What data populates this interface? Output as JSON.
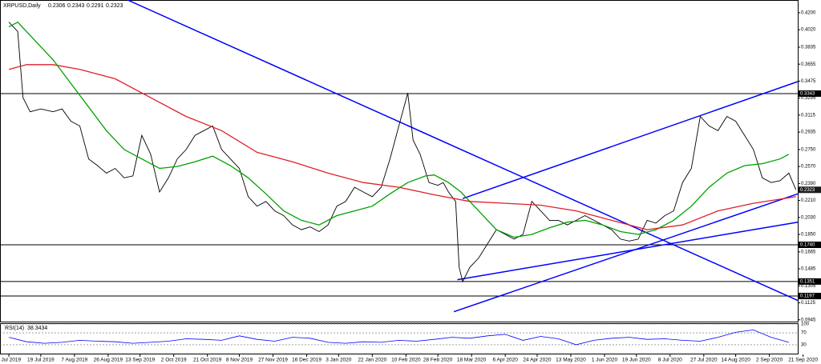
{
  "chart_data": [
    {
      "type": "line",
      "title": "XRPUSD,Daily",
      "ohlc": [
        0.2306,
        0.2343,
        0.2291,
        0.2323
      ],
      "xlim": [
        -5,
        445
      ],
      "ylim": [
        0.0926,
        0.4335
      ],
      "xticks": [
        {
          "value": 0,
          "label": "1 Jul 2019"
        },
        {
          "value": 18,
          "label": "19 Jul 2019"
        },
        {
          "value": 37,
          "label": "7 Aug 2019"
        },
        {
          "value": 56,
          "label": "26 Aug 2019"
        },
        {
          "value": 74,
          "label": "13 Sep 2019"
        },
        {
          "value": 93,
          "label": "2 Oct 2019"
        },
        {
          "value": 112,
          "label": "21 Oct 2019"
        },
        {
          "value": 130,
          "label": "8 Nov 2019"
        },
        {
          "value": 149,
          "label": "27 Nov 2019"
        },
        {
          "value": 168,
          "label": "16 Dec 2019"
        },
        {
          "value": 186,
          "label": "3 Jan 2020"
        },
        {
          "value": 205,
          "label": "22 Jan 2020"
        },
        {
          "value": 224,
          "label": "10 Feb 2020"
        },
        {
          "value": 242,
          "label": "28 Feb 2020"
        },
        {
          "value": 261,
          "label": "18 Mar 2020"
        },
        {
          "value": 280,
          "label": "6 Apr 2020"
        },
        {
          "value": 298,
          "label": "24 Apr 2020"
        },
        {
          "value": 317,
          "label": "13 May 2020"
        },
        {
          "value": 336,
          "label": "1 Jun 2020"
        },
        {
          "value": 354,
          "label": "19 Jun 2020"
        },
        {
          "value": 373,
          "label": "8 Jul 2020"
        },
        {
          "value": 392,
          "label": "27 Jul 2020"
        },
        {
          "value": 410,
          "label": "14 Aug 2020"
        },
        {
          "value": 429,
          "label": "2 Sep 2020"
        },
        {
          "value": 448,
          "label": "21 Sep 2020"
        }
      ],
      "yticks": [
        {
          "value": 0.42,
          "label": "0.4200"
        },
        {
          "value": 0.402,
          "label": "0.4020"
        },
        {
          "value": 0.3835,
          "label": "0.3835"
        },
        {
          "value": 0.3655,
          "label": "0.3655"
        },
        {
          "value": 0.3475,
          "label": "0.3475"
        },
        {
          "value": 0.3295,
          "label": "0.3295"
        },
        {
          "value": 0.3115,
          "label": "0.3115"
        },
        {
          "value": 0.2935,
          "label": "0.2935"
        },
        {
          "value": 0.275,
          "label": "0.2750"
        },
        {
          "value": 0.257,
          "label": "0.2570"
        },
        {
          "value": 0.239,
          "label": "0.2390"
        },
        {
          "value": 0.221,
          "label": "0.2210"
        },
        {
          "value": 0.203,
          "label": "0.2030"
        },
        {
          "value": 0.185,
          "label": "0.1850"
        },
        {
          "value": 0.1665,
          "label": "0.1665"
        },
        {
          "value": 0.1485,
          "label": "0.1485"
        },
        {
          "value": 0.1305,
          "label": "0.1305"
        },
        {
          "value": 0.1125,
          "label": "0.1125"
        },
        {
          "value": 0.0945,
          "label": "0.0945"
        }
      ],
      "levels": [
        {
          "value": 0.3343,
          "label": "0.3343"
        },
        {
          "value": 0.174,
          "label": "0.1740"
        },
        {
          "value": 0.1351,
          "label": "0.1351"
        },
        {
          "value": 0.1197,
          "label": "0.1197"
        }
      ],
      "series": [
        {
          "color": "#000000",
          "x": [
            0,
            5,
            8,
            12,
            18,
            25,
            30,
            35,
            40,
            45,
            50,
            55,
            60,
            65,
            70,
            75,
            80,
            85,
            90,
            95,
            100,
            105,
            110,
            115,
            120,
            125,
            130,
            135,
            140,
            145,
            150,
            155,
            160,
            165,
            170,
            175,
            180,
            185,
            190,
            195,
            200,
            205,
            210,
            215,
            220,
            225,
            228,
            232,
            237,
            242,
            245,
            248,
            252,
            254,
            256,
            260,
            265,
            270,
            275,
            280,
            285,
            290,
            295,
            300,
            305,
            310,
            315,
            320,
            325,
            330,
            335,
            340,
            345,
            350,
            355,
            360,
            365,
            370,
            375,
            380,
            385,
            390,
            395,
            400,
            405,
            410,
            415,
            420,
            425,
            430,
            435,
            440,
            444
          ],
          "values": [
            0.41,
            0.4,
            0.33,
            0.315,
            0.318,
            0.315,
            0.318,
            0.305,
            0.3,
            0.265,
            0.258,
            0.25,
            0.255,
            0.245,
            0.247,
            0.29,
            0.27,
            0.23,
            0.245,
            0.265,
            0.275,
            0.29,
            0.295,
            0.3,
            0.275,
            0.265,
            0.255,
            0.225,
            0.215,
            0.22,
            0.21,
            0.205,
            0.195,
            0.19,
            0.193,
            0.188,
            0.195,
            0.215,
            0.22,
            0.235,
            0.23,
            0.225,
            0.235,
            0.265,
            0.3,
            0.335,
            0.285,
            0.27,
            0.24,
            0.237,
            0.24,
            0.23,
            0.22,
            0.15,
            0.135,
            0.15,
            0.16,
            0.175,
            0.19,
            0.185,
            0.18,
            0.185,
            0.22,
            0.21,
            0.2,
            0.2,
            0.195,
            0.2,
            0.205,
            0.2,
            0.195,
            0.19,
            0.18,
            0.178,
            0.18,
            0.2,
            0.197,
            0.205,
            0.21,
            0.24,
            0.255,
            0.31,
            0.3,
            0.295,
            0.31,
            0.305,
            0.29,
            0.275,
            0.245,
            0.24,
            0.242,
            0.25,
            0.2323
          ]
        },
        {
          "color": "#00a000",
          "x": [
            0,
            5,
            15,
            25,
            35,
            45,
            55,
            65,
            75,
            85,
            95,
            105,
            115,
            125,
            135,
            145,
            155,
            165,
            175,
            185,
            195,
            205,
            215,
            225,
            235,
            240,
            248,
            255,
            265,
            275,
            285,
            295,
            305,
            315,
            325,
            335,
            345,
            355,
            365,
            375,
            385,
            395,
            405,
            415,
            425,
            435,
            440
          ],
          "values": [
            0.405,
            0.41,
            0.39,
            0.37,
            0.345,
            0.32,
            0.295,
            0.275,
            0.265,
            0.255,
            0.257,
            0.262,
            0.268,
            0.258,
            0.245,
            0.228,
            0.21,
            0.2,
            0.195,
            0.205,
            0.21,
            0.215,
            0.228,
            0.24,
            0.247,
            0.248,
            0.24,
            0.23,
            0.21,
            0.19,
            0.182,
            0.185,
            0.192,
            0.198,
            0.2,
            0.195,
            0.188,
            0.185,
            0.19,
            0.2,
            0.215,
            0.235,
            0.25,
            0.258,
            0.26,
            0.265,
            0.27
          ]
        },
        {
          "color": "#e0202a",
          "x": [
            0,
            10,
            25,
            40,
            60,
            80,
            100,
            120,
            140,
            160,
            180,
            200,
            220,
            240,
            260,
            280,
            300,
            320,
            340,
            360,
            380,
            400,
            420,
            444
          ],
          "values": [
            0.36,
            0.365,
            0.365,
            0.36,
            0.35,
            0.33,
            0.31,
            0.295,
            0.272,
            0.262,
            0.25,
            0.24,
            0.235,
            0.227,
            0.22,
            0.218,
            0.216,
            0.21,
            0.2,
            0.19,
            0.195,
            0.21,
            0.218,
            0.225
          ]
        }
      ],
      "trendline_color": "#0000ff",
      "trendlines": [
        {
          "x": [
            67,
            445
          ],
          "values": [
            0.4335,
            0.115
          ]
        },
        {
          "x": [
            251,
            445
          ],
          "values": [
            0.103,
            0.228
          ]
        },
        {
          "x": [
            253,
            445
          ],
          "values": [
            0.137,
            0.198
          ]
        },
        {
          "x": [
            256,
            445
          ],
          "values": [
            0.223,
            0.347
          ]
        }
      ]
    },
    {
      "type": "line",
      "title": "RSI(14)",
      "current": 38.3434,
      "ylim": [
        0,
        100
      ],
      "xlim": [
        -5,
        445
      ],
      "yticks": [
        100,
        70,
        30
      ],
      "color": "#0000ff",
      "x": [
        0,
        10,
        20,
        30,
        40,
        50,
        60,
        70,
        80,
        90,
        100,
        110,
        120,
        130,
        140,
        150,
        160,
        170,
        180,
        190,
        200,
        210,
        220,
        230,
        240,
        250,
        260,
        270,
        280,
        290,
        300,
        310,
        320,
        330,
        340,
        350,
        360,
        370,
        380,
        390,
        400,
        410,
        420,
        430,
        440
      ],
      "values": [
        55,
        40,
        35,
        38,
        45,
        42,
        40,
        35,
        38,
        42,
        50,
        48,
        45,
        60,
        48,
        42,
        55,
        52,
        38,
        35,
        40,
        38,
        45,
        42,
        48,
        55,
        52,
        60,
        65,
        45,
        58,
        50,
        30,
        45,
        52,
        55,
        48,
        50,
        45,
        42,
        55,
        72,
        80,
        55,
        38
      ]
    }
  ]
}
